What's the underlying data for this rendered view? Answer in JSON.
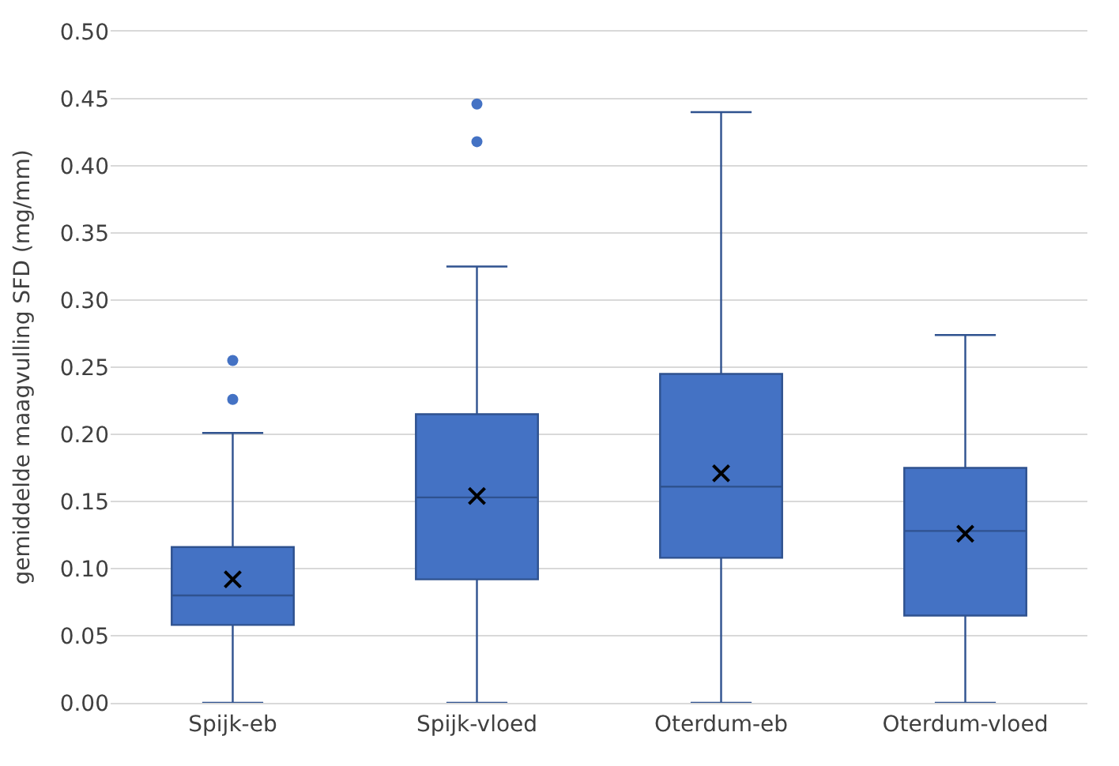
{
  "chart_data": {
    "type": "box",
    "ylabel": "gemiddelde maagvulling SFD (mg/mm)",
    "categories": [
      "Spijk-eb",
      "Spijk-vloed",
      "Oterdum-eb",
      "Oterdum-vloed"
    ],
    "boxes": [
      {
        "low": 0,
        "q1": 0.058,
        "median": 0.08,
        "q3": 0.116,
        "high": 0.201,
        "mean": 0.092,
        "outliers": [
          0.226,
          0.255
        ]
      },
      {
        "low": 0,
        "q1": 0.092,
        "median": 0.153,
        "q3": 0.215,
        "high": 0.325,
        "mean": 0.154,
        "outliers": [
          0.418,
          0.446
        ]
      },
      {
        "low": 0,
        "q1": 0.108,
        "median": 0.161,
        "q3": 0.245,
        "high": 0.44,
        "mean": 0.171
      },
      {
        "low": 0,
        "q1": 0.065,
        "median": 0.128,
        "q3": 0.175,
        "high": 0.274,
        "mean": 0.126
      }
    ],
    "color": "#4472c4",
    "ylim": [
      0,
      0.5
    ],
    "yticks": [
      {
        "value": 0,
        "label": "0.00"
      },
      {
        "value": 0.05,
        "label": "0.05"
      },
      {
        "value": 0.1,
        "label": "0.10"
      },
      {
        "value": 0.15,
        "label": "0.15"
      },
      {
        "value": 0.2,
        "label": "0.20"
      },
      {
        "value": 0.25,
        "label": "0.25"
      },
      {
        "value": 0.3,
        "label": "0.30"
      },
      {
        "value": 0.35,
        "label": "0.35"
      },
      {
        "value": 0.4,
        "label": "0.40"
      },
      {
        "value": 0.45,
        "label": "0.45"
      },
      {
        "value": 0.5,
        "label": "0.50"
      }
    ],
    "grid": "y"
  }
}
